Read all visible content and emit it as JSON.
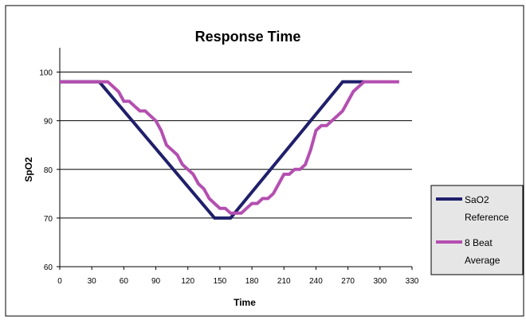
{
  "chart_data": {
    "type": "line",
    "title": "Response Time",
    "xlabel": "Time",
    "ylabel": "SpO2",
    "xlim": [
      0,
      330
    ],
    "ylim": [
      60,
      105
    ],
    "xticks": [
      0,
      30,
      60,
      90,
      120,
      150,
      180,
      210,
      240,
      270,
      300,
      330
    ],
    "yticks": [
      60,
      70,
      80,
      90,
      100
    ],
    "grid": "horizontal",
    "legend_position": "right",
    "series": [
      {
        "name": "SaO2 Reference",
        "name_lines": [
          "SaO2",
          "Reference"
        ],
        "color": "#1f1f6b",
        "points": [
          [
            0,
            98
          ],
          [
            37,
            98
          ],
          [
            145,
            70
          ],
          [
            160,
            70
          ],
          [
            265,
            98
          ],
          [
            285,
            98
          ]
        ]
      },
      {
        "name": "8 Beat Average",
        "name_lines": [
          "8 Beat",
          "Average"
        ],
        "color": "#b44fb0",
        "points": [
          [
            0,
            98
          ],
          [
            45,
            98
          ],
          [
            50,
            97
          ],
          [
            55,
            96
          ],
          [
            60,
            94
          ],
          [
            65,
            94
          ],
          [
            70,
            93
          ],
          [
            75,
            92
          ],
          [
            80,
            92
          ],
          [
            85,
            91
          ],
          [
            90,
            90
          ],
          [
            95,
            88
          ],
          [
            100,
            85
          ],
          [
            105,
            84
          ],
          [
            110,
            83
          ],
          [
            115,
            81
          ],
          [
            120,
            80
          ],
          [
            125,
            79
          ],
          [
            130,
            77
          ],
          [
            135,
            76
          ],
          [
            140,
            74
          ],
          [
            145,
            73
          ],
          [
            150,
            72
          ],
          [
            155,
            72
          ],
          [
            160,
            71
          ],
          [
            165,
            71
          ],
          [
            170,
            71
          ],
          [
            175,
            72
          ],
          [
            180,
            73
          ],
          [
            185,
            73
          ],
          [
            190,
            74
          ],
          [
            195,
            74
          ],
          [
            200,
            75
          ],
          [
            205,
            77
          ],
          [
            210,
            79
          ],
          [
            215,
            79
          ],
          [
            220,
            80
          ],
          [
            225,
            80
          ],
          [
            230,
            81
          ],
          [
            235,
            84
          ],
          [
            240,
            88
          ],
          [
            245,
            89
          ],
          [
            250,
            89
          ],
          [
            255,
            90
          ],
          [
            260,
            91
          ],
          [
            265,
            92
          ],
          [
            270,
            94
          ],
          [
            275,
            96
          ],
          [
            280,
            97
          ],
          [
            285,
            98
          ],
          [
            300,
            98
          ],
          [
            318,
            98
          ]
        ]
      }
    ]
  }
}
